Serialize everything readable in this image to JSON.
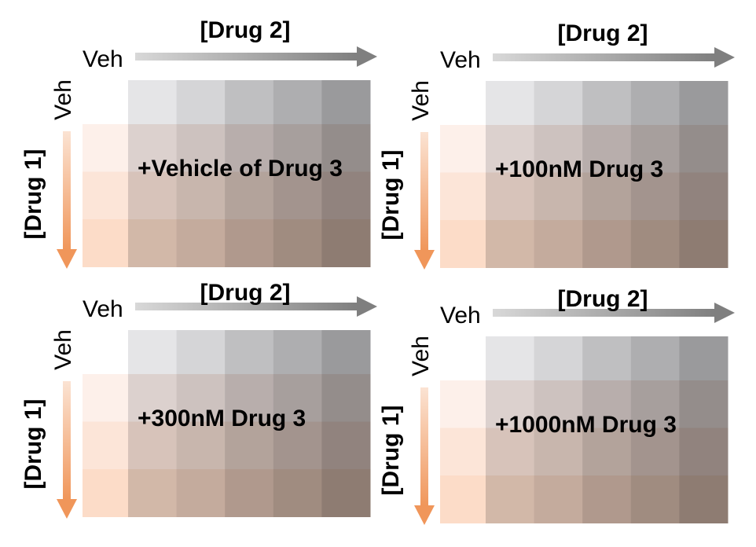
{
  "panels": [
    {
      "drug2": "[Drug 2]",
      "veh_x": "Veh",
      "veh_y": "Veh",
      "drug1": "[Drug 1]",
      "title": "+Vehicle of Drug 3"
    },
    {
      "drug2": "[Drug 2]",
      "veh_x": "Veh",
      "veh_y": "Veh",
      "drug1": "[Drug 1]",
      "title": "+100nM Drug 3"
    },
    {
      "drug2": "[Drug 2]",
      "veh_x": "Veh",
      "veh_y": "Veh",
      "drug1": "[Drug 1]",
      "title": "+300nM Drug 3"
    },
    {
      "drug2": "[Drug 2]",
      "veh_x": "Veh",
      "veh_y": "Veh",
      "drug1": "[Drug 1]",
      "title": "+1000nM Drug 3"
    }
  ]
}
